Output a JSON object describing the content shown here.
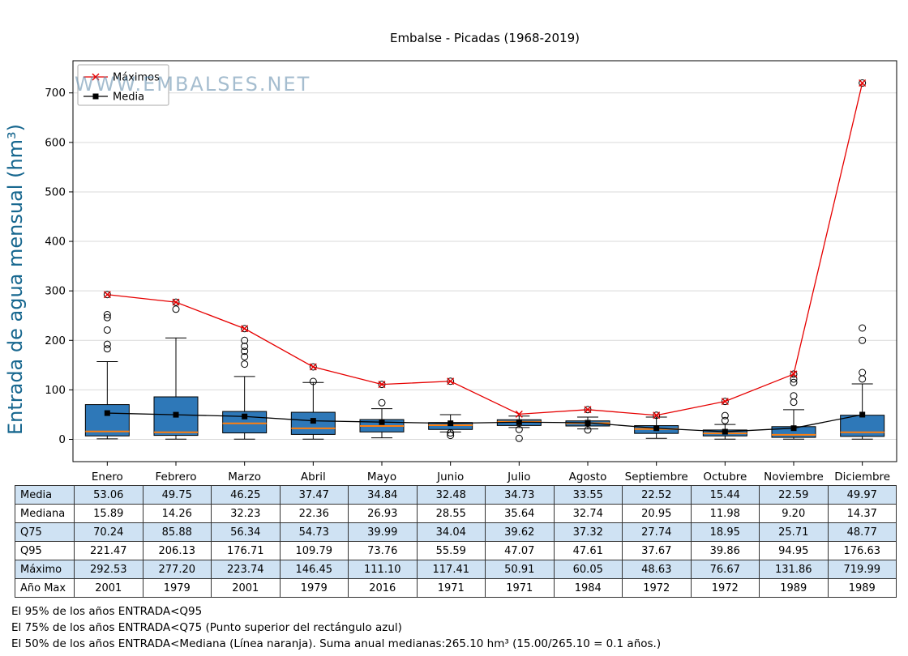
{
  "title": "Embalse - Picadas (1968-2019)",
  "watermark": "WWW.EMBALSES.NET",
  "chart_data": {
    "type": "boxplot",
    "title": "Embalse - Picadas (1968-2019)",
    "ylabel": "Entrada de agua mensual (hm³)",
    "ylim": [
      -45,
      765
    ],
    "yticks": [
      0,
      100,
      200,
      300,
      400,
      500,
      600,
      700
    ],
    "grid": "horizontal",
    "legend_position": "upper-left",
    "categories": [
      "Enero",
      "Febrero",
      "Marzo",
      "Abril",
      "Mayo",
      "Junio",
      "Julio",
      "Agosto",
      "Septiembre",
      "Octubre",
      "Noviembre",
      "Diciembre"
    ],
    "series": [
      {
        "name": "Máximos",
        "marker": "x",
        "color": "#e60000",
        "values": [
          292.53,
          277.2,
          223.74,
          146.45,
          111.1,
          117.41,
          50.91,
          60.05,
          48.63,
          76.67,
          131.86,
          719.99
        ]
      },
      {
        "name": "Media",
        "marker": "square",
        "color": "#000000",
        "values": [
          53.06,
          49.75,
          46.25,
          37.47,
          34.84,
          32.48,
          34.73,
          33.55,
          22.52,
          15.44,
          22.59,
          49.97
        ]
      }
    ],
    "boxes": [
      {
        "q1": 7,
        "median": 15.89,
        "q3": 70.24,
        "whisker_low": 1,
        "whisker_high": 157,
        "outliers": [
          183,
          192,
          221,
          246,
          252,
          292.53
        ]
      },
      {
        "q1": 8,
        "median": 14.26,
        "q3": 85.88,
        "whisker_low": 0.5,
        "whisker_high": 205,
        "outliers": [
          263,
          277.2
        ]
      },
      {
        "q1": 13,
        "median": 32.23,
        "q3": 56.34,
        "whisker_low": 0.5,
        "whisker_high": 127,
        "outliers": [
          152,
          167,
          178,
          188,
          200,
          223.74
        ]
      },
      {
        "q1": 10,
        "median": 22.36,
        "q3": 54.73,
        "whisker_low": 0.5,
        "whisker_high": 115,
        "outliers": [
          117,
          146.45
        ]
      },
      {
        "q1": 15,
        "median": 26.93,
        "q3": 39.99,
        "whisker_low": 3,
        "whisker_high": 62,
        "outliers": [
          74,
          111.1
        ]
      },
      {
        "q1": 20,
        "median": 28.55,
        "q3": 34.04,
        "whisker_low": 15,
        "whisker_high": 50,
        "outliers": [
          8,
          13,
          117.41
        ]
      },
      {
        "q1": 28,
        "median": 35.64,
        "q3": 39.62,
        "whisker_low": 24,
        "whisker_high": 47,
        "outliers": [
          2,
          20
        ]
      },
      {
        "q1": 27,
        "median": 32.74,
        "q3": 37.32,
        "whisker_low": 21,
        "whisker_high": 45,
        "outliers": [
          19,
          60.05
        ]
      },
      {
        "q1": 12,
        "median": 20.95,
        "q3": 27.74,
        "whisker_low": 2,
        "whisker_high": 45,
        "outliers": [
          48.63
        ]
      },
      {
        "q1": 7,
        "median": 11.98,
        "q3": 18.95,
        "whisker_low": 0.5,
        "whisker_high": 30,
        "outliers": [
          38,
          48,
          76.67
        ]
      },
      {
        "q1": 4,
        "median": 9.2,
        "q3": 25.71,
        "whisker_low": 0.5,
        "whisker_high": 60,
        "outliers": [
          75,
          88,
          115,
          122,
          131.86
        ]
      },
      {
        "q1": 6,
        "median": 14.37,
        "q3": 48.77,
        "whisker_low": 0.5,
        "whisker_high": 112,
        "outliers": [
          122,
          135,
          200,
          225,
          719.99
        ]
      }
    ],
    "colors": {
      "box_fill": "#2e78b8",
      "box_edge": "#000000",
      "median": "#ff7f0e",
      "grid": "#d9d9d9",
      "axis": "#000000",
      "ylabel": "#17678f",
      "watermark": "#5b87a8"
    }
  },
  "table": {
    "shade_color": "#cfe2f3",
    "columns": [
      "Enero",
      "Febrero",
      "Marzo",
      "Abril",
      "Mayo",
      "Junio",
      "Julio",
      "Agosto",
      "Septiembre",
      "Octubre",
      "Noviembre",
      "Diciembre"
    ],
    "row_labels": [
      "Media",
      "Mediana",
      "Q75",
      "Q95",
      "Máximo",
      "Año Max"
    ],
    "rows": [
      [
        "53.06",
        "49.75",
        "46.25",
        "37.47",
        "34.84",
        "32.48",
        "34.73",
        "33.55",
        "22.52",
        "15.44",
        "22.59",
        "49.97"
      ],
      [
        "15.89",
        "14.26",
        "32.23",
        "22.36",
        "26.93",
        "28.55",
        "35.64",
        "32.74",
        "20.95",
        "11.98",
        "9.20",
        "14.37"
      ],
      [
        "70.24",
        "85.88",
        "56.34",
        "54.73",
        "39.99",
        "34.04",
        "39.62",
        "37.32",
        "27.74",
        "18.95",
        "25.71",
        "48.77"
      ],
      [
        "221.47",
        "206.13",
        "176.71",
        "109.79",
        "73.76",
        "55.59",
        "47.07",
        "47.61",
        "37.67",
        "39.86",
        "94.95",
        "176.63"
      ],
      [
        "292.53",
        "277.20",
        "223.74",
        "146.45",
        "111.10",
        "117.41",
        "50.91",
        "60.05",
        "48.63",
        "76.67",
        "131.86",
        "719.99"
      ],
      [
        "2001",
        "1979",
        "2001",
        "1979",
        "2016",
        "1971",
        "1971",
        "1984",
        "1972",
        "1972",
        "1989",
        "1989"
      ]
    ]
  },
  "notes": [
    "El 95% de los años ENTRADA<Q95",
    "El 75% de los años ENTRADA<Q75 (Punto superior del rectángulo azul)",
    "El 50% de los años ENTRADA<Mediana (Línea naranja). Suma anual medianas:265.10 hm³ (15.00/265.10 = 0.1 años.)"
  ]
}
